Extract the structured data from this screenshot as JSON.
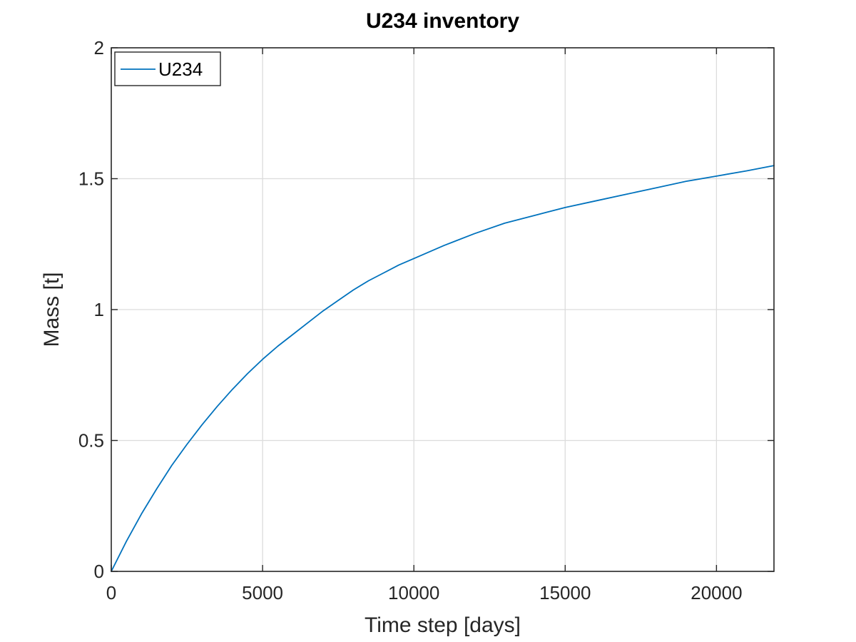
{
  "chart_data": {
    "type": "line",
    "title": "U234 inventory",
    "xlabel": "Time step [days]",
    "ylabel": "Mass [t]",
    "xlim": [
      0,
      21900
    ],
    "ylim": [
      0,
      2
    ],
    "xticks": [
      0,
      5000,
      10000,
      15000,
      20000
    ],
    "xtick_labels": [
      "0",
      "5000",
      "10000",
      "15000",
      "20000"
    ],
    "yticks": [
      0,
      0.5,
      1,
      1.5,
      2
    ],
    "ytick_labels": [
      "0",
      "0.5",
      "1",
      "1.5",
      "2"
    ],
    "grid": true,
    "legend_position": "top-left",
    "series": [
      {
        "name": "U234",
        "color": "#0072BD",
        "x": [
          0,
          500,
          1000,
          1500,
          2000,
          2500,
          3000,
          3500,
          4000,
          4500,
          5000,
          5500,
          6000,
          6500,
          7000,
          7500,
          8000,
          8500,
          9000,
          9500,
          10000,
          11000,
          12000,
          13000,
          14000,
          15000,
          16000,
          17000,
          18000,
          19000,
          20000,
          21000,
          21900
        ],
        "y": [
          0,
          0.115,
          0.22,
          0.315,
          0.405,
          0.485,
          0.56,
          0.63,
          0.695,
          0.755,
          0.81,
          0.86,
          0.905,
          0.95,
          0.995,
          1.035,
          1.075,
          1.11,
          1.14,
          1.17,
          1.195,
          1.245,
          1.29,
          1.33,
          1.36,
          1.39,
          1.415,
          1.44,
          1.465,
          1.49,
          1.51,
          1.53,
          1.55
        ]
      }
    ]
  }
}
